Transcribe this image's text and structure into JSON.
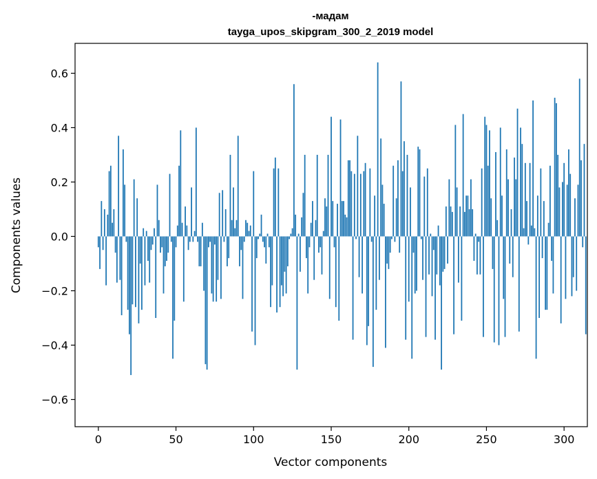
{
  "chart_data": {
    "type": "bar",
    "title_line1": "-мадам",
    "title_line2": "tayga_upos_skipgram_300_2_2019 model",
    "xlabel": "Vector components",
    "ylabel": "Components values",
    "xlim": [
      -15,
      315
    ],
    "ylim": [
      -0.7,
      0.71
    ],
    "bar_color": "#1f77b4",
    "x_ticks": [
      {
        "value": 0,
        "label": "0"
      },
      {
        "value": 50,
        "label": "50"
      },
      {
        "value": 100,
        "label": "100"
      },
      {
        "value": 150,
        "label": "150"
      },
      {
        "value": 200,
        "label": "200"
      },
      {
        "value": 250,
        "label": "250"
      },
      {
        "value": 300,
        "label": "300"
      }
    ],
    "y_ticks": [
      {
        "value": -0.6,
        "label": "−0.6"
      },
      {
        "value": -0.4,
        "label": "−0.4"
      },
      {
        "value": -0.2,
        "label": "−0.2"
      },
      {
        "value": 0.0,
        "label": "0.0"
      },
      {
        "value": 0.2,
        "label": "0.2"
      },
      {
        "value": 0.4,
        "label": "0.4"
      },
      {
        "value": 0.6,
        "label": "0.6"
      }
    ],
    "values": [
      -0.04,
      -0.12,
      0.13,
      -0.05,
      0.1,
      -0.18,
      0.08,
      0.24,
      0.26,
      0.05,
      0.1,
      -0.06,
      -0.17,
      0.37,
      -0.16,
      -0.29,
      0.32,
      0.19,
      -0.02,
      -0.27,
      -0.36,
      -0.51,
      -0.25,
      0.21,
      -0.26,
      0.14,
      -0.32,
      -0.1,
      -0.27,
      0.03,
      -0.18,
      0.02,
      -0.09,
      -0.17,
      -0.05,
      -0.03,
      0.03,
      -0.3,
      0.19,
      0.06,
      -0.06,
      -0.04,
      -0.21,
      -0.11,
      -0.09,
      -0.06,
      0.23,
      -0.02,
      -0.45,
      -0.31,
      -0.04,
      0.04,
      0.26,
      0.39,
      0.05,
      -0.24,
      0.11,
      0.04,
      -0.05,
      -0.02,
      0.18,
      -0.02,
      0.02,
      0.4,
      -0.02,
      -0.11,
      -0.11,
      0.05,
      -0.2,
      -0.47,
      -0.49,
      -0.04,
      -0.02,
      -0.21,
      -0.24,
      -0.03,
      -0.24,
      -0.16,
      0.16,
      -0.23,
      0.17,
      -0.02,
      0.1,
      -0.11,
      -0.08,
      0.3,
      0.06,
      0.18,
      0.03,
      0.06,
      0.37,
      -0.11,
      -0.05,
      -0.23,
      -0.02,
      0.06,
      0.05,
      0.02,
      0.04,
      -0.35,
      0.24,
      -0.4,
      -0.08,
      -0.01,
      0.01,
      0.08,
      -0.02,
      -0.04,
      -0.1,
      0.01,
      -0.04,
      -0.26,
      -0.18,
      0.25,
      0.29,
      -0.28,
      0.25,
      -0.26,
      -0.18,
      -0.22,
      -0.13,
      -0.21,
      -0.11,
      -0.01,
      0.01,
      0.03,
      0.56,
      0.08,
      -0.49,
      0.01,
      -0.13,
      0.07,
      0.16,
      0.3,
      -0.08,
      -0.21,
      -0.04,
      0.05,
      0.13,
      -0.16,
      0.06,
      0.3,
      -0.06,
      -0.04,
      -0.14,
      0.02,
      0.14,
      0.11,
      0.3,
      -0.23,
      0.44,
      0.13,
      -0.04,
      -0.26,
      0.12,
      -0.31,
      0.43,
      0.13,
      0.13,
      0.08,
      0.07,
      0.28,
      0.28,
      0.24,
      -0.38,
      0.23,
      -0.01,
      0.37,
      -0.15,
      0.23,
      -0.21,
      0.24,
      0.27,
      -0.4,
      -0.33,
      0.25,
      -0.02,
      -0.48,
      0.15,
      -0.27,
      0.64,
      -0.16,
      0.36,
      0.19,
      0.12,
      -0.41,
      -0.1,
      -0.12,
      -0.06,
      -0.01,
      0.26,
      -0.02,
      0.14,
      0.28,
      -0.06,
      0.57,
      0.24,
      0.35,
      -0.38,
      0.3,
      -0.24,
      0.18,
      -0.45,
      -0.06,
      -0.21,
      -0.2,
      0.33,
      0.32,
      -0.01,
      -0.16,
      0.22,
      -0.37,
      0.25,
      -0.14,
      0.01,
      -0.22,
      -0.05,
      -0.38,
      -0.14,
      0.04,
      -0.18,
      -0.49,
      -0.13,
      -0.12,
      0.11,
      -0.1,
      0.21,
      0.11,
      0.09,
      -0.36,
      0.41,
      0.18,
      -0.17,
      0.11,
      -0.31,
      0.45,
      0.09,
      0.15,
      0.15,
      0.1,
      0.21,
      0.1,
      -0.09,
      0.01,
      -0.14,
      -0.02,
      -0.14,
      0.25,
      -0.37,
      0.44,
      0.41,
      0.26,
      0.39,
      0.14,
      -0.12,
      -0.39,
      0.31,
      0.06,
      -0.4,
      0.4,
      0.15,
      -0.23,
      -0.37,
      0.32,
      0.21,
      -0.1,
      0.1,
      -0.15,
      0.29,
      0.21,
      0.47,
      -0.35,
      0.4,
      0.34,
      0.03,
      0.27,
      0.13,
      -0.03,
      0.27,
      0.04,
      0.5,
      0.03,
      -0.45,
      0.15,
      -0.3,
      0.25,
      -0.08,
      0.13,
      -0.27,
      -0.27,
      0.05,
      0.26,
      -0.09,
      -0.21,
      0.51,
      0.49,
      0.3,
      0.18,
      -0.32,
      0.2,
      0.27,
      -0.23,
      0.19,
      0.32,
      0.23,
      -0.22,
      -0.15,
      0.14,
      -0.2,
      0.19,
      0.58,
      0.28,
      -0.04,
      0.34,
      -0.36
    ]
  }
}
